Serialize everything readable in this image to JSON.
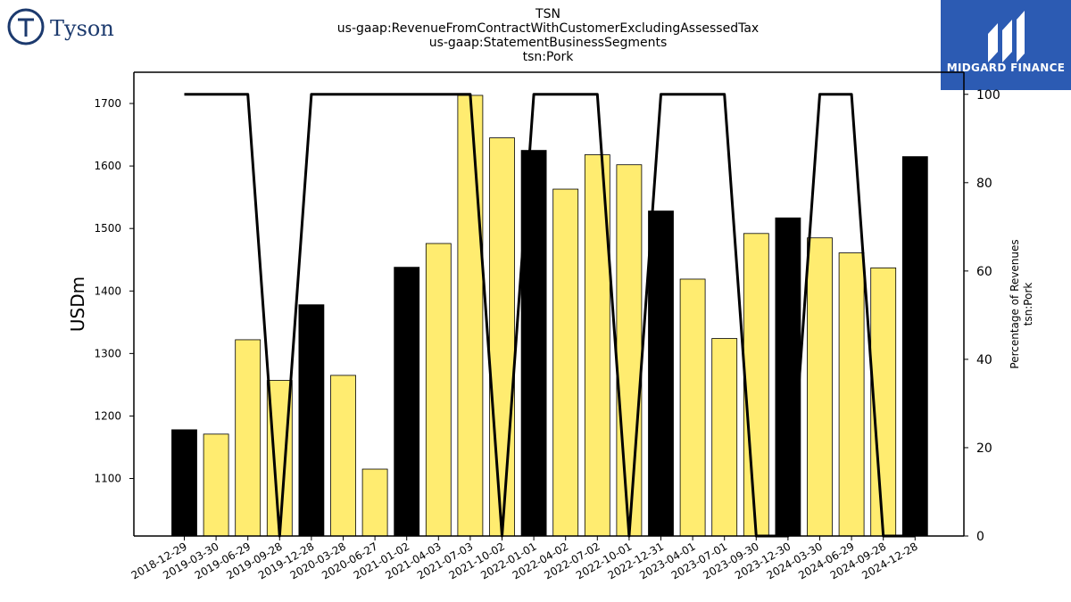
{
  "header": {
    "company_logo_text": "Tyson",
    "brand_logo_text": "MIDGARD FINANCE",
    "title_lines": [
      "TSN",
      "us-gaap:RevenueFromContractWithCustomerExcludingAssessedTax",
      "us-gaap:StatementBusinessSegments",
      "tsn:Pork"
    ]
  },
  "chart_data": {
    "type": "bar",
    "xlabel": "",
    "ylabel": "USDm",
    "y2label_lines": [
      "Percentage of Revenues",
      "tsn:Pork"
    ],
    "ylim": [
      1008,
      1750
    ],
    "y2lim": [
      0,
      105
    ],
    "yticks": [
      1100,
      1200,
      1300,
      1400,
      1500,
      1600,
      1700
    ],
    "y2ticks": [
      0,
      20,
      40,
      60,
      80,
      100
    ],
    "colors": {
      "annual_bar": "#000000",
      "quarter_bar": "#ffec70",
      "line": "#000000"
    },
    "categories": [
      "2018-12-29",
      "2019-03-30",
      "2019-06-29",
      "2019-09-28",
      "2019-12-28",
      "2020-03-28",
      "2020-06-27",
      "2021-01-02",
      "2021-04-03",
      "2021-07-03",
      "2021-10-02",
      "2022-01-01",
      "2022-04-02",
      "2022-07-02",
      "2022-10-01",
      "2022-12-31",
      "2023-04-01",
      "2023-07-01",
      "2023-09-30",
      "2023-12-30",
      "2024-03-30",
      "2024-06-29",
      "2024-09-28",
      "2024-12-28"
    ],
    "series": [
      {
        "values": [
          1178,
          1171,
          1322,
          1257,
          1378,
          1265,
          1115,
          1438,
          1476,
          1713,
          1645,
          1625,
          1563,
          1618,
          1602,
          1528,
          1419,
          1324,
          1492,
          1517,
          1485,
          1461,
          1437,
          1615
        ],
        "bar_kind": [
          "annual",
          "quarter",
          "quarter",
          "quarter",
          "annual",
          "quarter",
          "quarter",
          "annual",
          "quarter",
          "quarter",
          "quarter",
          "annual",
          "quarter",
          "quarter",
          "quarter",
          "annual",
          "quarter",
          "quarter",
          "quarter",
          "annual",
          "quarter",
          "quarter",
          "quarter",
          "annual"
        ]
      },
      {
        "axis": "right",
        "values": [
          100,
          100,
          100,
          0,
          100,
          100,
          100,
          100,
          100,
          100,
          0,
          100,
          100,
          100,
          0,
          100,
          100,
          100,
          0,
          0,
          100,
          100,
          0,
          0
        ]
      }
    ]
  }
}
